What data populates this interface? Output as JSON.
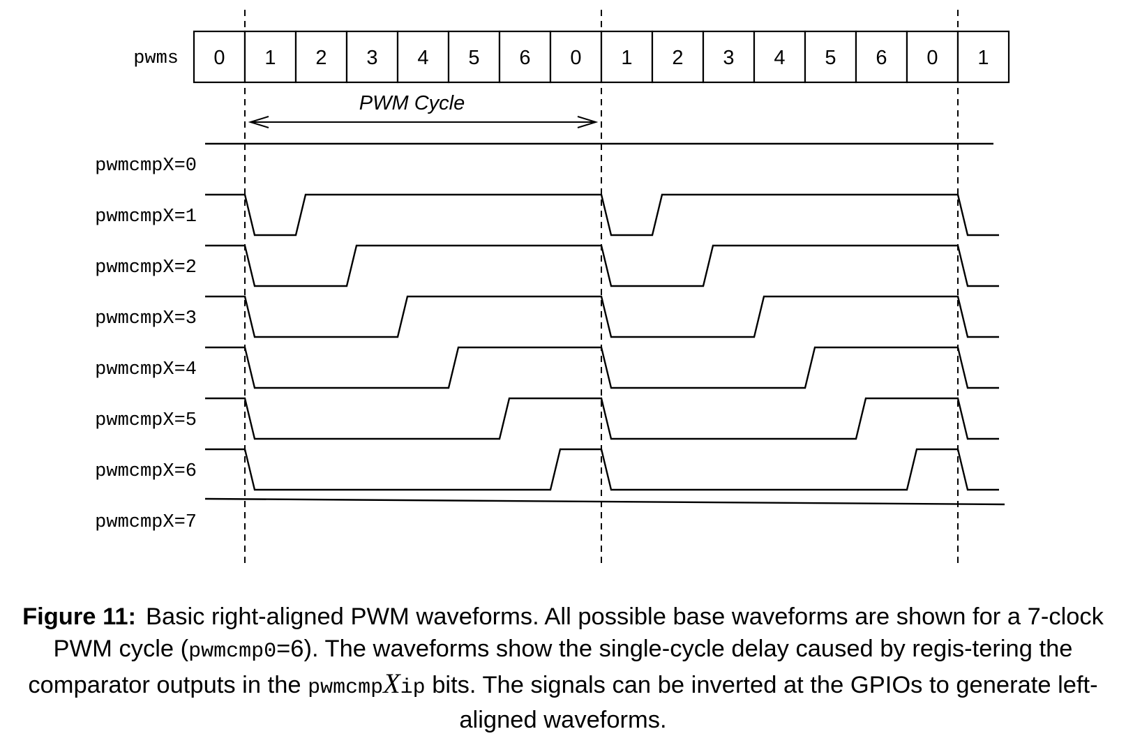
{
  "diagram": {
    "counter_label": "pwms",
    "counter_values": [
      "0",
      "1",
      "2",
      "3",
      "4",
      "5",
      "6",
      "0",
      "1",
      "2",
      "3",
      "4",
      "5",
      "6",
      "0",
      "1"
    ],
    "cycle_label": "PWM Cycle",
    "signals": [
      {
        "label": "pwmcmpX=0",
        "cmp": 0
      },
      {
        "label": "pwmcmpX=1",
        "cmp": 1
      },
      {
        "label": "pwmcmpX=2",
        "cmp": 2
      },
      {
        "label": "pwmcmpX=3",
        "cmp": 3
      },
      {
        "label": "pwmcmpX=4",
        "cmp": 4
      },
      {
        "label": "pwmcmpX=5",
        "cmp": 5
      },
      {
        "label": "pwmcmpX=6",
        "cmp": 6
      },
      {
        "label": "pwmcmpX=7",
        "cmp": 7
      }
    ],
    "pwm_cycle_clocks": 7,
    "line_color": "#000000"
  },
  "caption": {
    "label": "Figure 11:",
    "part1": "Basic right-aligned PWM waveforms. All possible base waveforms are shown for a 7-clock PWM cycle (",
    "code1": "pwmcmp0",
    "part2": "=6). The waveforms show the single-cycle delay caused by regis-tering the comparator outputs in the ",
    "code2a": "pwmcmp",
    "math_x": "X",
    "code2b": "ip",
    "part3": " bits. The signals can be inverted at the GPIOs to generate left-aligned waveforms."
  }
}
